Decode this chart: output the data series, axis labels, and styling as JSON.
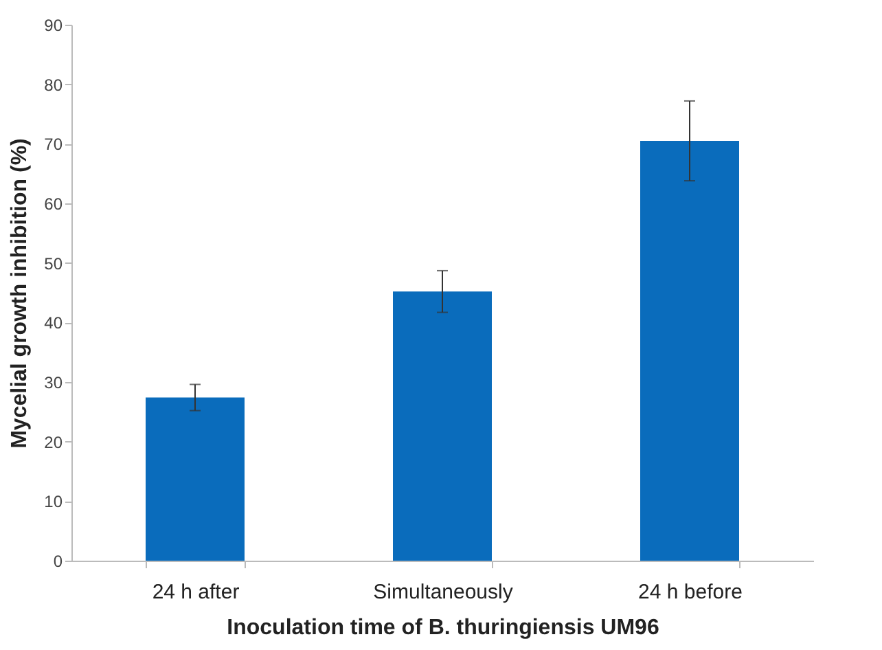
{
  "chart_data": {
    "type": "bar",
    "xlabel": "Inoculation time of B. thuringiensis UM96",
    "ylabel": "Mycelial growth inhibition  (%)",
    "categories": [
      "24 h after",
      "Simultaneously",
      "24 h before"
    ],
    "values": [
      27.4,
      45.2,
      70.5
    ],
    "errors": [
      2.2,
      3.5,
      6.7
    ],
    "color": "#0a6cbc",
    "ylim": [
      0,
      90
    ],
    "yticks": [
      0,
      10,
      20,
      30,
      40,
      50,
      60,
      70,
      80,
      90
    ],
    "grid": false
  }
}
